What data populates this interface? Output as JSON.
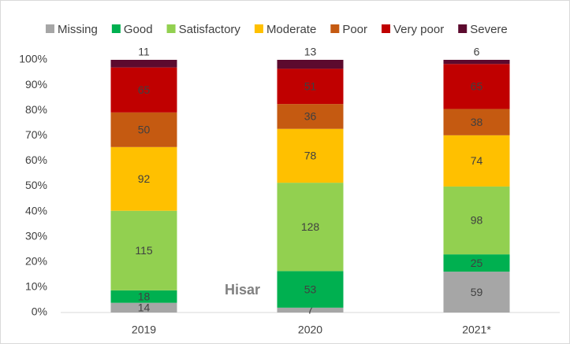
{
  "chart_data": {
    "type": "bar",
    "stacking": "percent",
    "categories": [
      "2019",
      "2020",
      "2021*"
    ],
    "series": [
      {
        "name": "Missing",
        "color": "#a6a6a6",
        "values": [
          14,
          7,
          59
        ]
      },
      {
        "name": "Good",
        "color": "#00b050",
        "values": [
          18,
          53,
          25
        ]
      },
      {
        "name": "Satisfactory",
        "color": "#92d050",
        "values": [
          115,
          128,
          98
        ]
      },
      {
        "name": "Moderate",
        "color": "#ffc000",
        "values": [
          92,
          78,
          74
        ]
      },
      {
        "name": "Poor",
        "color": "#c55a11",
        "values": [
          50,
          36,
          38
        ]
      },
      {
        "name": "Very poor",
        "color": "#c00000",
        "values": [
          65,
          51,
          65
        ]
      },
      {
        "name": "Severe",
        "color": "#5c0a2e",
        "values": [
          11,
          13,
          6
        ]
      }
    ],
    "ylim": [
      0,
      100
    ],
    "yticks": [
      {
        "value": 0,
        "label": "0%"
      },
      {
        "value": 10,
        "label": "10%"
      },
      {
        "value": 20,
        "label": "20%"
      },
      {
        "value": 30,
        "label": "30%"
      },
      {
        "value": 40,
        "label": "40%"
      },
      {
        "value": 50,
        "label": "50%"
      },
      {
        "value": 60,
        "label": "60%"
      },
      {
        "value": 70,
        "label": "70%"
      },
      {
        "value": 80,
        "label": "80%"
      },
      {
        "value": 90,
        "label": "90%"
      },
      {
        "value": 100,
        "label": "100%"
      }
    ],
    "annotation": "Hisar",
    "legend": "top"
  }
}
